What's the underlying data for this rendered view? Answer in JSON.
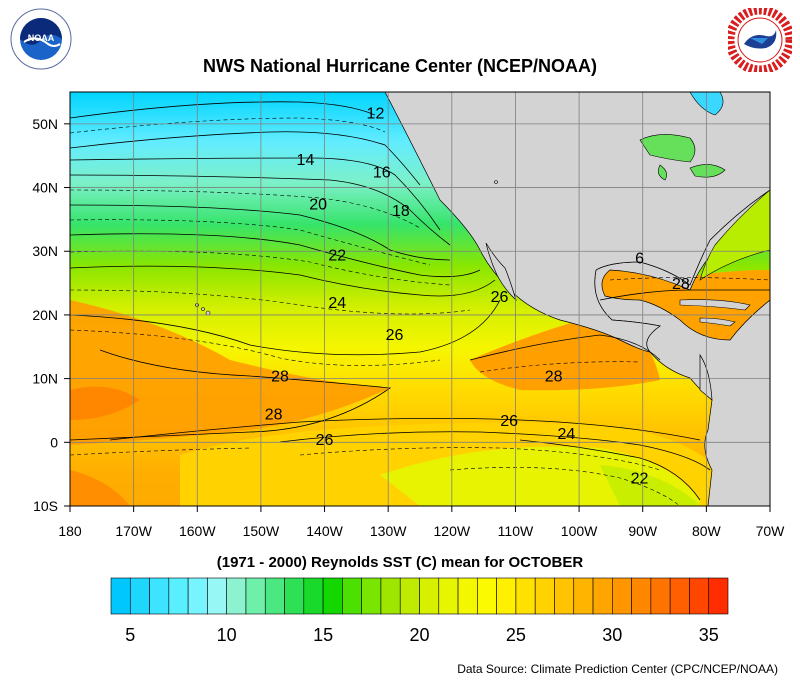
{
  "title": "NWS National Hurricane Center (NCEP/NOAA)",
  "subtitle": "(1971 - 2000) Reynolds SST (C) mean for OCTOBER",
  "source": "Data Source: Climate Prediction Center (CPC/NCEP/NOAA)",
  "logos": {
    "left": {
      "text": "NOAA",
      "ring": "NATIONAL OCEANIC AND ATMOSPHERIC ADMINISTRATION · U.S. DEPARTMENT OF COMMERCE"
    },
    "right": {
      "ring": "NATIONAL WEATHER SERVICE"
    }
  },
  "map": {
    "lon_labels": [
      "180",
      "170W",
      "160W",
      "150W",
      "140W",
      "130W",
      "120W",
      "110W",
      "100W",
      "90W",
      "80W",
      "70W"
    ],
    "lat_labels": [
      "50N",
      "40N",
      "30N",
      "20N",
      "10N",
      "0",
      "10S"
    ],
    "contour_labels": [
      {
        "text": "12",
        "lon": -132,
        "lat": 51.8
      },
      {
        "text": "14",
        "lon": -143,
        "lat": 44.5
      },
      {
        "text": "16",
        "lon": -131,
        "lat": 42.5
      },
      {
        "text": "18",
        "lon": -128,
        "lat": 36.5
      },
      {
        "text": "20",
        "lon": -141,
        "lat": 37.5
      },
      {
        "text": "22",
        "lon": -138,
        "lat": 29.5
      },
      {
        "text": "24",
        "lon": -138,
        "lat": 22
      },
      {
        "text": "26",
        "lon": -129,
        "lat": 17
      },
      {
        "text": "26",
        "lon": -112.5,
        "lat": 23
      },
      {
        "text": "28",
        "lon": -147,
        "lat": 10.5
      },
      {
        "text": "28",
        "lon": -148,
        "lat": 4.5
      },
      {
        "text": "26",
        "lon": -140,
        "lat": 0.5
      },
      {
        "text": "26",
        "lon": -111,
        "lat": 3.5
      },
      {
        "text": "24",
        "lon": -102,
        "lat": 1.5
      },
      {
        "text": "22",
        "lon": -90.5,
        "lat": -5.5
      },
      {
        "text": "28",
        "lon": -104,
        "lat": 10.5
      },
      {
        "text": "28",
        "lon": -84,
        "lat": 25
      },
      {
        "text": "6",
        "lon": -90.5,
        "lat": 29
      }
    ]
  },
  "colorbar": {
    "min": 4,
    "max": 36,
    "tick_labels": [
      "5",
      "10",
      "15",
      "20",
      "25",
      "30",
      "35"
    ],
    "colors": [
      "#00c8ff",
      "#1ed7ff",
      "#3ce4ff",
      "#5aefff",
      "#78f4ff",
      "#96f7f5",
      "#8cf2d0",
      "#6ff0aa",
      "#4be882",
      "#2de055",
      "#19da2a",
      "#14d700",
      "#4be000",
      "#78e600",
      "#9ee600",
      "#bfeb00",
      "#d7f000",
      "#e6f500",
      "#f3f800",
      "#fcfa00",
      "#fff000",
      "#ffe100",
      "#ffd200",
      "#ffc300",
      "#ffb400",
      "#ffa500",
      "#ff9600",
      "#ff8700",
      "#ff7300",
      "#ff5f00",
      "#ff4600",
      "#ff2d00"
    ]
  }
}
